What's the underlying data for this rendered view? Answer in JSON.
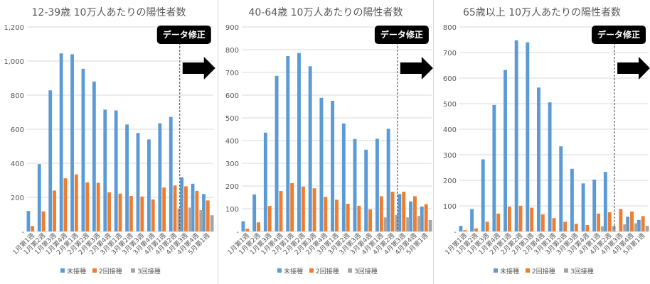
{
  "colors": {
    "unvaccinated": "#5b9bd5",
    "dose2": "#ed7d31",
    "dose3": "#a5a5a5",
    "title": "#595959",
    "axis_text": "#595959",
    "gridline": "#d9d9d9",
    "badge_bg": "#000000",
    "badge_text": "#ffffff",
    "arrow": "#000000"
  },
  "chart_data": [
    {
      "type": "bar",
      "title": "12-39歳 10万人あたりの陽性者数",
      "categories": [
        "1月第1週",
        "1月第2週",
        "1月第3週",
        "1月第4週",
        "2月第1週",
        "2月第2週",
        "2月第3週",
        "2月第4週",
        "3月第1週",
        "3月第2週",
        "3月第3週",
        "3月第4週",
        "4月第1週",
        "4月第2週",
        "4月第3週",
        "4月第4週",
        "5月第1週"
      ],
      "series": [
        {
          "name": "未接種",
          "values": [
            120,
            395,
            828,
            1045,
            1040,
            955,
            880,
            715,
            710,
            628,
            578,
            540,
            635,
            672,
            318,
            280,
            220
          ]
        },
        {
          "name": "2回接種",
          "values": [
            32,
            118,
            240,
            312,
            335,
            288,
            285,
            230,
            222,
            208,
            205,
            188,
            258,
            270,
            265,
            238,
            182
          ]
        },
        {
          "name": "3回接種",
          "values": [
            0,
            0,
            0,
            0,
            0,
            0,
            0,
            0,
            0,
            0,
            0,
            0,
            0,
            135,
            140,
            125,
            95
          ]
        }
      ],
      "ylim": [
        0,
        1200
      ],
      "yticks": [
        0,
        200,
        400,
        600,
        800,
        1000,
        1200
      ],
      "ytick_labels": [
        "-",
        "200",
        "400",
        "600",
        "800",
        "1,000",
        "1,200"
      ],
      "grid": true,
      "legend": "bottom",
      "annotation": "データ修正",
      "divider_after_index": 13
    },
    {
      "type": "bar",
      "title": "40-64歳 10万人あたりの陽性者数",
      "categories": [
        "1月第1週",
        "1月第2週",
        "1月第3週",
        "1月第4週",
        "2月第1週",
        "2月第2週",
        "2月第3週",
        "2月第4週",
        "3月第1週",
        "3月第2週",
        "3月第3週",
        "3月第4週",
        "4月第1週",
        "4月第2週",
        "4月第3週",
        "4月第4週",
        "5月第1週"
      ],
      "series": [
        {
          "name": "未接種",
          "values": [
            45,
            163,
            435,
            685,
            772,
            785,
            727,
            588,
            575,
            475,
            407,
            360,
            408,
            452,
            165,
            132,
            110
          ]
        },
        {
          "name": "2回接種",
          "values": [
            12,
            40,
            112,
            178,
            213,
            197,
            190,
            152,
            140,
            122,
            113,
            97,
            155,
            175,
            175,
            155,
            120
          ]
        },
        {
          "name": "3回接種",
          "values": [
            0,
            0,
            0,
            0,
            0,
            0,
            0,
            0,
            0,
            0,
            0,
            0,
            62,
            72,
            62,
            68,
            50
          ]
        }
      ],
      "ylim": [
        0,
        900
      ],
      "yticks": [
        0,
        100,
        200,
        300,
        400,
        500,
        600,
        700,
        800,
        900
      ],
      "ytick_labels": [
        "-",
        "100",
        "200",
        "300",
        "400",
        "500",
        "600",
        "700",
        "800",
        "900"
      ],
      "grid": true,
      "legend": "bottom",
      "annotation": "データ修正",
      "divider_after_index": 13
    },
    {
      "type": "bar",
      "title": "65歳以上 10万人あたりの陽性者数",
      "categories": [
        "1月第1週",
        "1月第2週",
        "1月第3週",
        "1月第4週",
        "2月第1週",
        "2月第2週",
        "2月第3週",
        "2月第4週",
        "3月第1週",
        "3月第2週",
        "3月第3週",
        "3月第4週",
        "4月第1週",
        "4月第2週",
        "4月第3週",
        "4月第4週",
        "5月第1週"
      ],
      "series": [
        {
          "name": "未接種",
          "values": [
            22,
            88,
            282,
            495,
            632,
            748,
            740,
            563,
            505,
            333,
            245,
            188,
            203,
            233,
            0,
            58,
            45
          ]
        },
        {
          "name": "2回接種",
          "values": [
            5,
            12,
            38,
            70,
            97,
            100,
            93,
            67,
            52,
            38,
            30,
            25,
            70,
            75,
            88,
            78,
            60
          ]
        },
        {
          "name": "3回接種",
          "values": [
            0,
            0,
            0,
            0,
            0,
            0,
            0,
            0,
            0,
            0,
            0,
            0,
            20,
            22,
            28,
            32,
            22
          ]
        }
      ],
      "ylim": [
        0,
        800
      ],
      "yticks": [
        0,
        100,
        200,
        300,
        400,
        500,
        600,
        700,
        800
      ],
      "ytick_labels": [
        "-",
        "100",
        "200",
        "300",
        "400",
        "500",
        "600",
        "700",
        "800"
      ],
      "grid": true,
      "legend": "bottom",
      "annotation": "データ修正",
      "divider_after_index": 13
    }
  ]
}
